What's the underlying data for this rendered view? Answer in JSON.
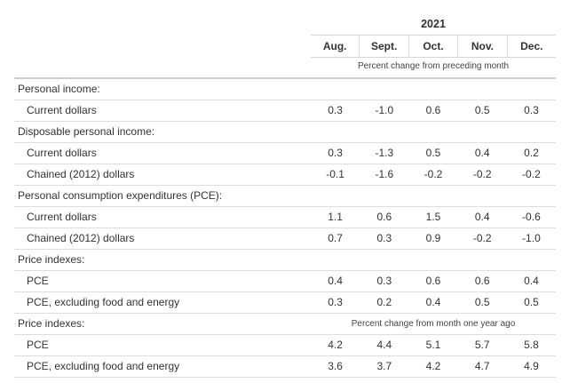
{
  "header": {
    "year": "2021",
    "months": [
      "Aug.",
      "Sept.",
      "Oct.",
      "Nov.",
      "Dec."
    ],
    "unit_note": "Percent change from preceding month"
  },
  "rows": [
    {
      "label": "Personal income:",
      "section": true
    },
    {
      "label": "Current dollars",
      "values": [
        "0.3",
        "-1.0",
        "0.6",
        "0.5",
        "0.3"
      ]
    },
    {
      "label": "Disposable personal income:",
      "section": true
    },
    {
      "label": "Current dollars",
      "values": [
        "0.3",
        "-1.3",
        "0.5",
        "0.4",
        "0.2"
      ]
    },
    {
      "label": "Chained (2012) dollars",
      "values": [
        "-0.1",
        "-1.6",
        "-0.2",
        "-0.2",
        "-0.2"
      ]
    },
    {
      "label": "Personal consumption expenditures (PCE):",
      "section": true
    },
    {
      "label": "Current dollars",
      "values": [
        "1.1",
        "0.6",
        "1.5",
        "0.4",
        "-0.6"
      ]
    },
    {
      "label": "Chained (2012) dollars",
      "values": [
        "0.7",
        "0.3",
        "0.9",
        "-0.2",
        "-1.0"
      ]
    },
    {
      "label": "Price indexes:",
      "section": true
    },
    {
      "label": "PCE",
      "values": [
        "0.4",
        "0.3",
        "0.6",
        "0.6",
        "0.4"
      ]
    },
    {
      "label": "PCE, excluding food and energy",
      "values": [
        "0.3",
        "0.2",
        "0.4",
        "0.5",
        "0.5"
      ]
    },
    {
      "label": "Price indexes:",
      "section": true,
      "note": "Percent change from month one year ago"
    },
    {
      "label": "PCE",
      "values": [
        "4.2",
        "4.4",
        "5.1",
        "5.7",
        "5.8"
      ]
    },
    {
      "label": "PCE, excluding food and energy",
      "values": [
        "3.6",
        "3.7",
        "4.2",
        "4.7",
        "4.9"
      ]
    }
  ]
}
